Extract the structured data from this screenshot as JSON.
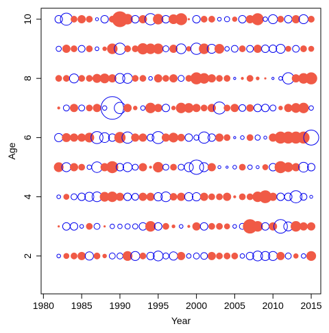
{
  "chart_data": {
    "type": "bubble",
    "xlabel": "Year",
    "ylabel": "Age",
    "xlim": [
      1979.7,
      2016.25
    ],
    "ylim": [
      0.72,
      10.37
    ],
    "xticks": [
      1980,
      1985,
      1990,
      1995,
      2000,
      2005,
      2010,
      2015
    ],
    "yticks": [
      2,
      4,
      6,
      8,
      10
    ],
    "positive_color": "#f05a46",
    "negative_color": "#0000ee",
    "x": [
      1982,
      1983,
      1984,
      1985,
      1986,
      1987,
      1988,
      1989,
      1990,
      1991,
      1992,
      1993,
      1994,
      1995,
      1996,
      1997,
      1998,
      1999,
      2000,
      2001,
      2002,
      2003,
      2004,
      2005,
      2006,
      2007,
      2008,
      2009,
      2010,
      2011,
      2012,
      2013,
      2014,
      2015
    ],
    "y": [
      2,
      3,
      4,
      5,
      6,
      7,
      8,
      9,
      10
    ],
    "values": [
      [
        -0.5,
        0.7,
        0.8,
        1,
        -1.1,
        0.8,
        0.5,
        -0.8,
        -0.8,
        1.2,
        -1.2,
        0.8,
        -1,
        -1.3,
        -0.8,
        -1.1,
        1,
        -0.6,
        -0.8,
        -0.9,
        1,
        0.8,
        0.8,
        0.8,
        -0.6,
        -1,
        -1.3,
        -1.2,
        -1.2,
        1,
        -0.8,
        0.6,
        -0.6,
        1.2
      ],
      [
        0.2,
        -1,
        -1,
        -0.5,
        0.8,
        -0.8,
        0.2,
        -0.6,
        -0.6,
        -0.7,
        -0.7,
        -1,
        1.3,
        -1,
        0.8,
        0.4,
        -0.5,
        0.3,
        1,
        -1,
        0.8,
        0.8,
        0.7,
        -0.5,
        -0.8,
        1.8,
        1.3,
        -1,
        1,
        -1.8,
        -1.2,
        1.3,
        1,
        1
      ],
      [
        -0.5,
        0.7,
        -0.8,
        -1,
        -1.2,
        -1.3,
        1.2,
        1.3,
        1,
        -1,
        -0.9,
        1,
        1,
        -1.1,
        -1.3,
        0.9,
        1,
        -1.1,
        -1.1,
        1,
        0.8,
        0.8,
        1,
        0.3,
        0.8,
        0.8,
        1.3,
        1.6,
        1,
        -1,
        -1,
        -1.6,
        -0.9,
        -0.4
      ],
      [
        1.2,
        -1.2,
        1,
        0.8,
        -0.6,
        -1.4,
        1,
        1.5,
        -1,
        -1.2,
        -0.8,
        1,
        0.3,
        1.3,
        -0.8,
        0.8,
        -0.8,
        -1.2,
        -1.9,
        -1.2,
        1,
        -0.4,
        -0.3,
        -0.5,
        0.8,
        -0.6,
        -0.4,
        0.7,
        -1,
        1.5,
        1.2,
        1,
        -1.3,
        -1
      ],
      [
        -1.1,
        1.1,
        1,
        1,
        1.2,
        -1.6,
        -1.3,
        -1,
        1.4,
        -1.5,
        1,
        1,
        -0.9,
        -1.6,
        1,
        1.2,
        0.9,
        -1,
        -0.7,
        -1.5,
        -1,
        1,
        0.8,
        -0.3,
        -0.5,
        0.8,
        -0.7,
        -0.4,
        1,
        1.5,
        1.5,
        1.5,
        1.5,
        -2
      ],
      [
        0.3,
        -0.8,
        1,
        -0.8,
        0.8,
        1,
        -0.6,
        -3,
        -1.5,
        1,
        0.5,
        -0.6,
        1.3,
        1,
        -1,
        0.5,
        1.3,
        1.2,
        1,
        0.8,
        1,
        -1.6,
        0.8,
        1,
        -0.9,
        0.9,
        -1,
        -1,
        -0.8,
        0.5,
        1,
        1.2,
        1.3,
        -0.6
      ],
      [
        0.8,
        0.8,
        -1.2,
        0.8,
        0.8,
        1.1,
        1.2,
        1,
        -1.3,
        -1.3,
        0.8,
        0.8,
        -0.5,
        1,
        0.8,
        1,
        -0.8,
        0.8,
        1.5,
        1.3,
        1,
        0.8,
        0.8,
        -0.3,
        0.3,
        0.8,
        0.4,
        0.2,
        -0.3,
        -0.5,
        -1.5,
        1,
        1.3,
        1.5
      ],
      [
        -0.7,
        1,
        0.8,
        -0.9,
        0.8,
        -0.5,
        0.5,
        1.3,
        -1.5,
        0.8,
        0.8,
        1.4,
        1.3,
        1.3,
        -0.8,
        1,
        -1.3,
        0.6,
        -1.5,
        1.3,
        -1.2,
        1.2,
        -0.6,
        -0.9,
        0.8,
        -0.9,
        1,
        -1,
        -1,
        -1.2,
        0.7,
        -0.9,
        0.8,
        0.7
      ],
      [
        -1,
        -1.6,
        0.8,
        1,
        0.8,
        -0.4,
        -1,
        0.8,
        2,
        1.3,
        -1,
        1,
        -1.5,
        1.3,
        -1,
        1.2,
        1.5,
        0.2,
        -1,
        0.8,
        0.8,
        -0.5,
        -0.7,
        0.6,
        -1,
        1,
        1.5,
        -0.6,
        -1.2,
        0.8,
        -1,
        1,
        -1.2,
        0.8
      ]
    ]
  }
}
